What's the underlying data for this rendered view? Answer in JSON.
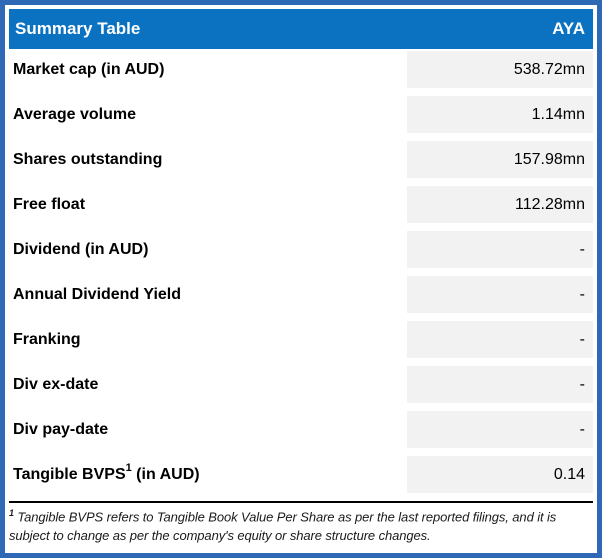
{
  "header": {
    "title": "Summary Table",
    "ticker": "AYA"
  },
  "rows": [
    {
      "label": "Market cap (in AUD)",
      "sup": "",
      "label_suffix": "",
      "value": "538.72mn"
    },
    {
      "label": "Average volume",
      "sup": "",
      "label_suffix": "",
      "value": "1.14mn"
    },
    {
      "label": "Shares outstanding",
      "sup": "",
      "label_suffix": "",
      "value": "157.98mn"
    },
    {
      "label": "Free float",
      "sup": "",
      "label_suffix": "",
      "value": "112.28mn"
    },
    {
      "label": "Dividend (in AUD)",
      "sup": "",
      "label_suffix": "",
      "value": "-"
    },
    {
      "label": "Annual Dividend Yield",
      "sup": "",
      "label_suffix": "",
      "value": "-"
    },
    {
      "label": "Franking",
      "sup": "",
      "label_suffix": "",
      "value": "-"
    },
    {
      "label": "Div ex-date",
      "sup": "",
      "label_suffix": "",
      "value": "-"
    },
    {
      "label": "Div pay-date",
      "sup": "",
      "label_suffix": "",
      "value": "-"
    },
    {
      "label": "Tangible BVPS",
      "sup": "1",
      "label_suffix": " (in AUD)",
      "value": "0.14"
    }
  ],
  "footnote": {
    "marker": "1",
    "text": " Tangible BVPS refers to Tangible Book Value Per Share as per the last reported filings, and it is subject to change as per the company's equity or share structure changes."
  },
  "colors": {
    "outer_border": "#2F68B5",
    "header_bg": "#0B72C2",
    "value_bg": "#F2F2F2"
  }
}
